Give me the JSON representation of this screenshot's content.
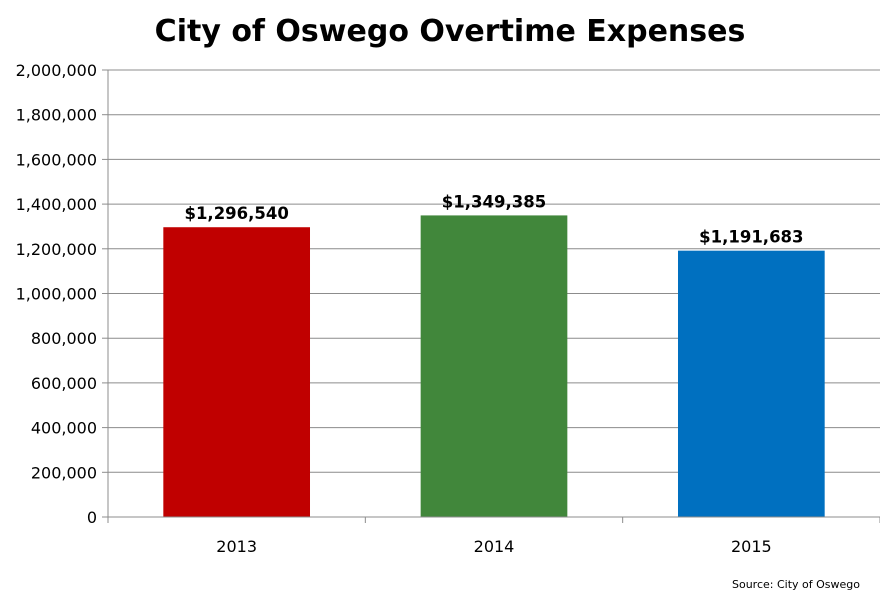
{
  "chart_data": {
    "type": "bar",
    "title": "City of Oswego Overtime Expenses",
    "categories": [
      "2013",
      "2014",
      "2015"
    ],
    "values": [
      1296540,
      1349385,
      1191683
    ],
    "data_labels": [
      "$1,296,540",
      "$1,349,385",
      "$1,191,683"
    ],
    "colors": [
      "#c00000",
      "#41873b",
      "#0070c0"
    ],
    "ylim": [
      0,
      2000000
    ],
    "yticks": [
      0,
      200000,
      400000,
      600000,
      800000,
      1000000,
      1200000,
      1400000,
      1600000,
      1800000,
      2000000
    ],
    "ytick_labels": [
      "0",
      "200,000",
      "400,000",
      "600,000",
      "800,000",
      "1,000,000",
      "1,200,000",
      "1,400,000",
      "1,600,000",
      "1,800,000",
      "2,000,000"
    ],
    "grid": true,
    "legend": "none",
    "xlabel": "",
    "ylabel": ""
  },
  "source_note": "Source: City of Oswego"
}
